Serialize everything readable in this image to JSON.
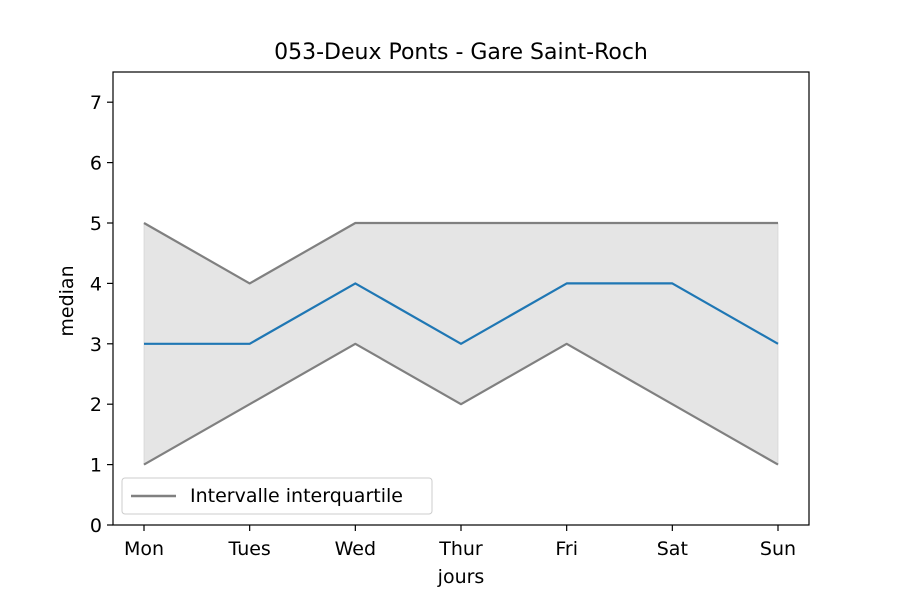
{
  "chart_data": {
    "type": "line",
    "title": "053-Deux Ponts - Gare Saint-Roch",
    "xlabel": "jours",
    "ylabel": "median",
    "categories": [
      "Mon",
      "Tues",
      "Wed",
      "Thur",
      "Fri",
      "Sat",
      "Sun"
    ],
    "ylim": [
      0,
      7.5
    ],
    "yticks": [
      0,
      1,
      2,
      3,
      4,
      5,
      6,
      7
    ],
    "series": [
      {
        "role": "median",
        "values": [
          3,
          3,
          4,
          3,
          4,
          4,
          3
        ],
        "color": "#1f77b4"
      },
      {
        "role": "q3",
        "name": "Intervalle interquartile",
        "values": [
          5,
          4,
          5,
          5,
          5,
          5,
          5
        ],
        "color": "#808080"
      },
      {
        "role": "q1",
        "values": [
          1,
          2,
          3,
          2,
          3,
          2,
          1
        ],
        "color": "#808080"
      }
    ],
    "band_fill": "#e5e5e5",
    "grid": false,
    "legend_position": "lower-left"
  }
}
